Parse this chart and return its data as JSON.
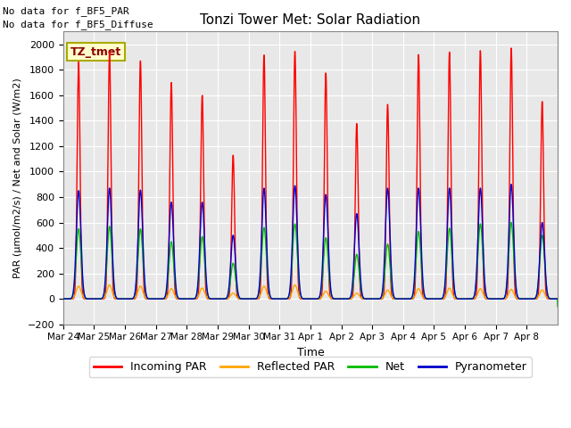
{
  "title": "Tonzi Tower Met: Solar Radiation",
  "ylabel": "PAR (μmol/m2/s) / Net and Solar (W/m2)",
  "xlabel": "Time",
  "ylim": [
    -200,
    2100
  ],
  "yticks": [
    -200,
    0,
    200,
    400,
    600,
    800,
    1000,
    1200,
    1400,
    1600,
    1800,
    2000
  ],
  "x_labels": [
    "Mar 24",
    "Mar 25",
    "Mar 26",
    "Mar 27",
    "Mar 28",
    "Mar 29",
    "Mar 30",
    "Mar 31",
    "Apr 1",
    "Apr 2",
    "Apr 3",
    "Apr 4",
    "Apr 5",
    "Apr 6",
    "Apr 7",
    "Apr 8"
  ],
  "annotation_top_line1": "No data for f_BF5_PAR",
  "annotation_top_line2": "No data for f_BF5_Diffuse",
  "legend_label": "TZ_tmet",
  "colors": {
    "incoming_par": "#FF0000",
    "reflected_par": "#FFA500",
    "net": "#00BB00",
    "pyranometer": "#0000CC",
    "background": "#E8E8E8",
    "legend_box_bg": "#FFFFCC",
    "legend_box_border": "#AAAA00"
  },
  "legend_entries": [
    "Incoming PAR",
    "Reflected PAR",
    "Net",
    "Pyranometer"
  ],
  "day_peaks_incoming": [
    1860,
    1940,
    1870,
    1700,
    1600,
    1130,
    1920,
    1950,
    1780,
    1380,
    1530,
    1920,
    1940,
    1950,
    1970,
    1550
  ],
  "day_peaks_reflected": [
    100,
    110,
    100,
    80,
    85,
    45,
    100,
    110,
    60,
    45,
    70,
    80,
    85,
    80,
    75,
    70
  ],
  "day_peaks_net": [
    550,
    570,
    550,
    450,
    490,
    280,
    560,
    590,
    480,
    350,
    430,
    530,
    555,
    590,
    600,
    500
  ],
  "day_peaks_pyranometer": [
    850,
    870,
    855,
    760,
    760,
    500,
    870,
    890,
    820,
    670,
    870,
    870,
    870,
    870,
    900,
    600
  ],
  "night_net": -60,
  "num_days": 16
}
